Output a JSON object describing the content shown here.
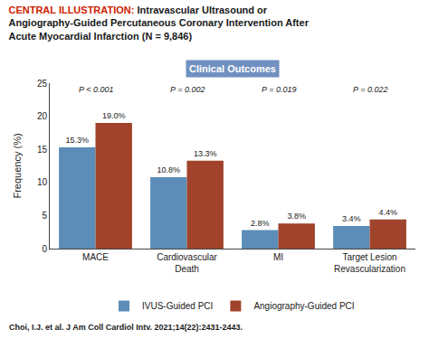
{
  "chart_data": {
    "type": "bar",
    "title": "CENTRAL ILLUSTRATION: Intravascular Ultrasound or\nAngiography-Guided Percutaneous Coronary Intervention After\nAcute Myocardial Infarction (N = 9,846)",
    "subtitle": "Clinical Outcomes",
    "caption": "Choi, I.J. et al. J Am Coll Cardiol Intv. 2021;14(22):2431-2443.",
    "categories": [
      "MACE",
      "Cardiovascular\nDeath",
      "MI",
      "Target Lesion\nRevascularization"
    ],
    "series": [
      {
        "name": "IVUS-Guided PCI",
        "color": "#5B8DB8",
        "values": [
          15.3,
          10.8,
          2.8,
          3.4
        ],
        "value_labels": [
          "15.3%",
          "10.8%",
          "2.8%",
          "3.4%"
        ]
      },
      {
        "name": "Angiography-Guided PCI",
        "color": "#A0432A",
        "values": [
          19.0,
          13.3,
          3.8,
          4.4
        ],
        "value_labels": [
          "19.0%",
          "13.3%",
          "3.8%",
          "4.4%"
        ]
      }
    ],
    "annotations": [
      {
        "text": "P < 0.001",
        "category": "MACE"
      },
      {
        "text": "P = 0.002",
        "category": "Cardiovascular\nDeath"
      },
      {
        "text": "P = 0.019",
        "category": "MI"
      },
      {
        "text": "P = 0.022",
        "category": "Target Lesion\nRevascularization"
      }
    ],
    "ylabel": "Frequency (%)",
    "ylim": [
      0,
      25
    ],
    "yticks": [
      0,
      5,
      10,
      15,
      20,
      25
    ],
    "grid": false,
    "legend": "bottom",
    "data_labels": true
  }
}
